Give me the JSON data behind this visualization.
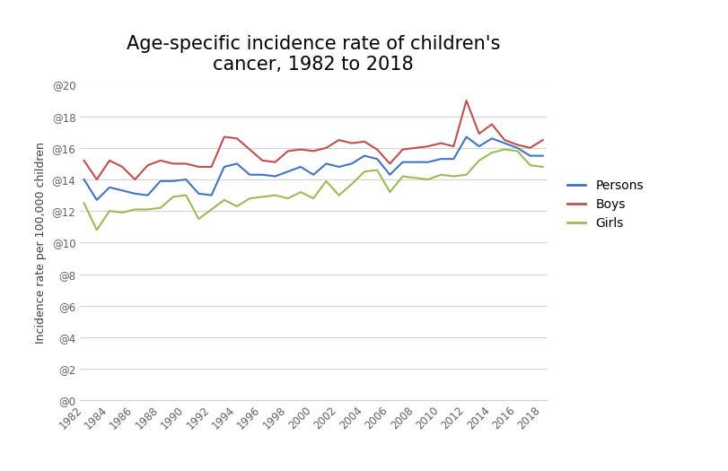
{
  "title": "Age-specific incidence rate of children's\ncancer, 1982 to 2018",
  "ylabel": "Incidence rate per 100,000 children",
  "years": [
    1982,
    1983,
    1984,
    1985,
    1986,
    1987,
    1988,
    1989,
    1990,
    1991,
    1992,
    1993,
    1994,
    1995,
    1996,
    1997,
    1998,
    1999,
    2000,
    2001,
    2002,
    2003,
    2004,
    2005,
    2006,
    2007,
    2008,
    2009,
    2010,
    2011,
    2012,
    2013,
    2014,
    2015,
    2016,
    2017,
    2018
  ],
  "persons": [
    14.0,
    12.7,
    13.5,
    13.3,
    13.1,
    13.0,
    13.9,
    13.9,
    14.0,
    13.1,
    13.0,
    14.8,
    15.0,
    14.3,
    14.3,
    14.2,
    14.5,
    14.8,
    14.3,
    15.0,
    14.8,
    15.0,
    15.5,
    15.3,
    14.3,
    15.1,
    15.1,
    15.1,
    15.3,
    15.3,
    16.7,
    16.1,
    16.6,
    16.3,
    16.0,
    15.5,
    15.5
  ],
  "boys": [
    15.2,
    14.0,
    15.2,
    14.8,
    14.0,
    14.9,
    15.2,
    15.0,
    15.0,
    14.8,
    14.8,
    16.7,
    16.6,
    15.9,
    15.2,
    15.1,
    15.8,
    15.9,
    15.8,
    16.0,
    16.5,
    16.3,
    16.4,
    15.9,
    15.0,
    15.9,
    16.0,
    16.1,
    16.3,
    16.1,
    19.0,
    16.9,
    17.5,
    16.5,
    16.2,
    16.0,
    16.5
  ],
  "girls": [
    12.5,
    10.8,
    12.0,
    11.9,
    12.1,
    12.1,
    12.2,
    12.9,
    13.0,
    11.5,
    12.1,
    12.7,
    12.3,
    12.8,
    12.9,
    13.0,
    12.8,
    13.2,
    12.8,
    13.9,
    13.0,
    13.7,
    14.5,
    14.6,
    13.2,
    14.2,
    14.1,
    14.0,
    14.3,
    14.2,
    14.3,
    15.2,
    15.7,
    15.9,
    15.8,
    14.9,
    14.8
  ],
  "persons_color": "#4472C4",
  "boys_color": "#C0504D",
  "girls_color": "#9BBB59",
  "background_color": "#FFFFFF",
  "ylim": [
    0,
    20
  ],
  "ytick_step": 2,
  "xtick_step": 2,
  "legend_labels": [
    "Persons",
    "Boys",
    "Girls"
  ],
  "title_fontsize": 15,
  "axis_label_fontsize": 9,
  "tick_fontsize": 8.5,
  "legend_fontsize": 10,
  "line_width": 1.5
}
